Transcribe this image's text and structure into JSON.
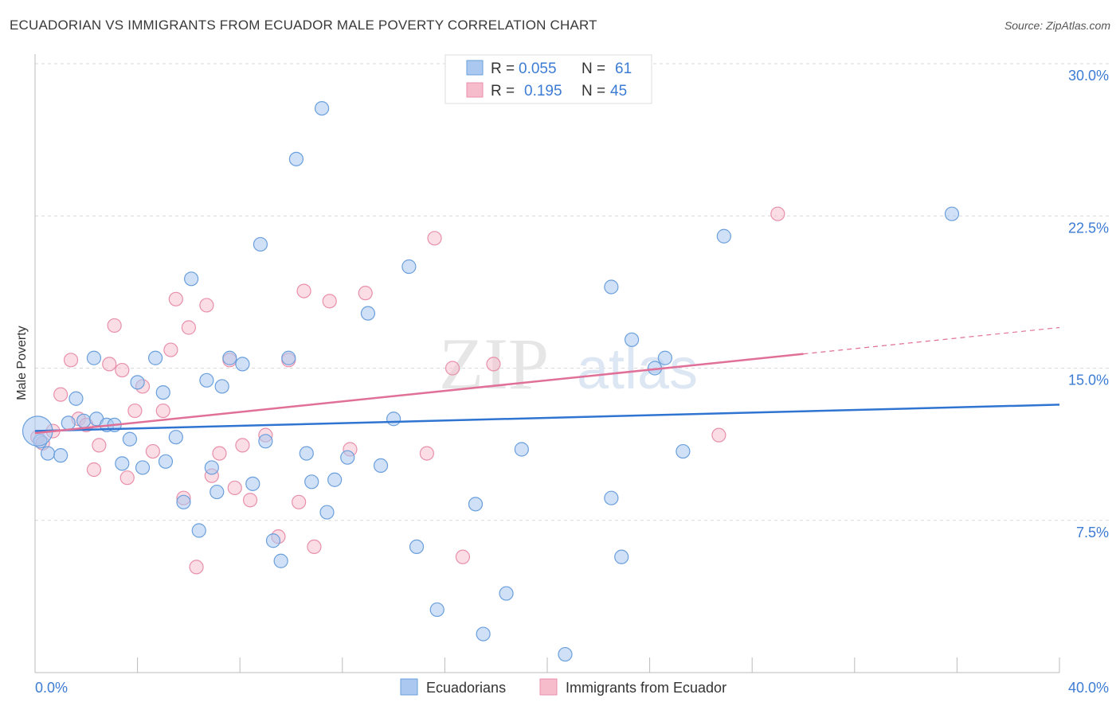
{
  "header": {
    "title": "ECUADORIAN VS IMMIGRANTS FROM ECUADOR MALE POVERTY CORRELATION CHART",
    "source": "Source: ZipAtlas.com"
  },
  "watermark": {
    "zip": "ZIP",
    "atlas": "atlas"
  },
  "colors": {
    "blue_fill": "#aac8f0",
    "blue_stroke": "#6a9fdc",
    "blue_line": "#2f74d0",
    "pink_fill": "#f6bccc",
    "pink_stroke": "#e890ab",
    "pink_line": "#e07098",
    "tick_text": "#3d7cd4",
    "grid": "#d8d8d8"
  },
  "legend_top": [
    {
      "r_label": "R =",
      "r_value": "0.055",
      "n_label": "N =",
      "n_value": "61",
      "series": "blue"
    },
    {
      "r_label": "R =",
      "r_value": "0.195",
      "n_label": "N =",
      "n_value": "45",
      "series": "pink"
    }
  ],
  "chart_data": {
    "type": "scatter",
    "title": "ECUADORIAN VS IMMIGRANTS FROM ECUADOR MALE POVERTY CORRELATION CHART",
    "xlabel": "",
    "ylabel": "Male Poverty",
    "xlim": [
      0,
      40
    ],
    "ylim": [
      0,
      30
    ],
    "x_tick_labels": [
      "0.0%",
      "40.0%"
    ],
    "y_ticks": [
      7.5,
      15.0,
      22.5,
      30.0
    ],
    "y_tick_labels": [
      "7.5%",
      "15.0%",
      "22.5%",
      "30.0%"
    ],
    "grid": true,
    "legend_position": "bottom-center",
    "series": [
      {
        "name": "Ecuadorians",
        "color": "#aac8f0",
        "trend": {
          "x": [
            0,
            40
          ],
          "y": [
            11.9,
            13.2
          ]
        },
        "points": [
          [
            0.2,
            11.4
          ],
          [
            0.5,
            10.8
          ],
          [
            1.0,
            10.7
          ],
          [
            1.3,
            12.3
          ],
          [
            1.6,
            13.5
          ],
          [
            1.9,
            12.4
          ],
          [
            2.4,
            12.5
          ],
          [
            2.3,
            15.5
          ],
          [
            2.8,
            12.2
          ],
          [
            3.1,
            12.2
          ],
          [
            3.4,
            10.3
          ],
          [
            3.7,
            11.5
          ],
          [
            4.0,
            14.3
          ],
          [
            4.2,
            10.1
          ],
          [
            4.7,
            15.5
          ],
          [
            5.0,
            13.8
          ],
          [
            5.1,
            10.4
          ],
          [
            5.5,
            11.6
          ],
          [
            5.8,
            8.4
          ],
          [
            6.1,
            19.4
          ],
          [
            6.4,
            7.0
          ],
          [
            6.7,
            14.4
          ],
          [
            6.9,
            10.1
          ],
          [
            7.1,
            8.9
          ],
          [
            7.3,
            14.1
          ],
          [
            7.6,
            15.5
          ],
          [
            8.1,
            15.2
          ],
          [
            8.5,
            9.3
          ],
          [
            8.8,
            21.1
          ],
          [
            9.0,
            11.4
          ],
          [
            9.3,
            6.5
          ],
          [
            9.6,
            5.5
          ],
          [
            9.9,
            15.5
          ],
          [
            10.2,
            25.3
          ],
          [
            10.6,
            10.8
          ],
          [
            10.8,
            9.4
          ],
          [
            11.2,
            27.8
          ],
          [
            11.4,
            7.9
          ],
          [
            11.7,
            9.5
          ],
          [
            12.2,
            10.6
          ],
          [
            13.0,
            17.7
          ],
          [
            13.5,
            10.2
          ],
          [
            14.0,
            12.5
          ],
          [
            14.6,
            20.0
          ],
          [
            14.9,
            6.2
          ],
          [
            15.7,
            3.1
          ],
          [
            17.2,
            8.3
          ],
          [
            17.5,
            1.9
          ],
          [
            18.4,
            3.9
          ],
          [
            19.0,
            11.0
          ],
          [
            20.7,
            0.9
          ],
          [
            22.5,
            19.0
          ],
          [
            22.5,
            8.6
          ],
          [
            22.9,
            5.7
          ],
          [
            23.3,
            16.4
          ],
          [
            24.2,
            15.0
          ],
          [
            24.6,
            15.5
          ],
          [
            25.3,
            10.9
          ],
          [
            26.9,
            21.5
          ],
          [
            35.8,
            22.6
          ],
          [
            0.1,
            11.9
          ]
        ],
        "point_sizes": [
          1,
          1,
          1,
          1,
          1,
          1,
          1,
          1,
          1,
          1,
          1,
          1,
          1,
          1,
          1,
          1,
          1,
          1,
          1,
          1,
          1,
          1,
          1,
          1,
          1,
          1,
          1,
          1,
          1,
          1,
          1,
          1,
          1,
          1,
          1,
          1,
          1,
          1,
          1,
          1,
          1,
          1,
          1,
          1,
          1,
          1,
          1,
          1,
          1,
          1,
          1,
          1,
          1,
          1,
          1,
          1,
          1,
          1,
          1,
          1,
          2.2
        ]
      },
      {
        "name": "Immigrants from Ecuador",
        "color": "#f6bccc",
        "trend": {
          "x": [
            0,
            30
          ],
          "y": [
            11.8,
            15.7
          ]
        },
        "trend_dashed": {
          "x": [
            30,
            40
          ],
          "y": [
            15.7,
            17.0
          ]
        },
        "points": [
          [
            0.1,
            11.6
          ],
          [
            0.3,
            11.3
          ],
          [
            0.7,
            11.9
          ],
          [
            1.0,
            13.7
          ],
          [
            1.4,
            15.4
          ],
          [
            1.7,
            12.5
          ],
          [
            2.0,
            12.2
          ],
          [
            2.3,
            10.0
          ],
          [
            2.5,
            11.2
          ],
          [
            2.9,
            15.2
          ],
          [
            3.1,
            17.1
          ],
          [
            3.4,
            14.9
          ],
          [
            3.6,
            9.6
          ],
          [
            3.9,
            12.9
          ],
          [
            4.2,
            14.1
          ],
          [
            4.6,
            10.9
          ],
          [
            5.0,
            12.9
          ],
          [
            5.3,
            15.9
          ],
          [
            5.5,
            18.4
          ],
          [
            5.8,
            8.6
          ],
          [
            6.0,
            17.0
          ],
          [
            6.3,
            5.2
          ],
          [
            6.7,
            18.1
          ],
          [
            6.9,
            9.7
          ],
          [
            7.2,
            10.8
          ],
          [
            7.6,
            15.4
          ],
          [
            7.8,
            9.1
          ],
          [
            8.1,
            11.2
          ],
          [
            8.4,
            8.5
          ],
          [
            9.0,
            11.7
          ],
          [
            9.5,
            6.7
          ],
          [
            9.9,
            15.4
          ],
          [
            10.3,
            8.4
          ],
          [
            10.5,
            18.8
          ],
          [
            10.9,
            6.2
          ],
          [
            11.5,
            18.3
          ],
          [
            12.3,
            11.0
          ],
          [
            12.9,
            18.7
          ],
          [
            15.3,
            10.8
          ],
          [
            15.6,
            21.4
          ],
          [
            16.3,
            15.0
          ],
          [
            16.7,
            5.7
          ],
          [
            17.9,
            15.2
          ],
          [
            26.7,
            11.7
          ],
          [
            29.0,
            22.6
          ]
        ]
      }
    ]
  },
  "legend_bottom": [
    {
      "label": "Ecuadorians",
      "series": "blue"
    },
    {
      "label": "Immigrants from Ecuador",
      "series": "pink"
    }
  ]
}
